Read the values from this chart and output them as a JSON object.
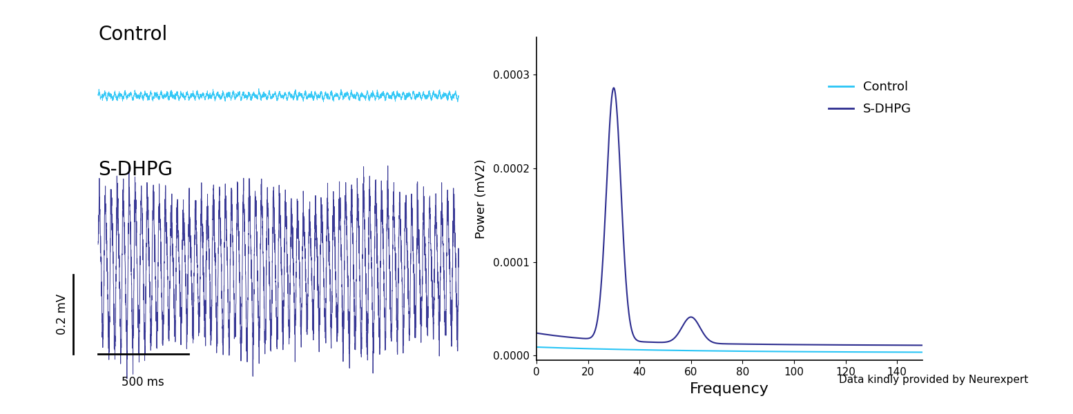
{
  "control_color": "#29C5F6",
  "sdhpg_color": "#2D2D8F",
  "title_control": "Control",
  "title_sdhpg": "S-DHPG",
  "scalebar_label_v": "0.2 mV",
  "scalebar_label_t": "500 ms",
  "ylabel_power": "Power (mV2)",
  "xlabel_freq": "Frequency",
  "yticks": [
    0.0,
    0.0001,
    0.0002,
    0.0003
  ],
  "ytick_labels": [
    "0.0000",
    "0.0001",
    "0.0002",
    "0.0003"
  ],
  "xticks": [
    0,
    20,
    40,
    60,
    80,
    100,
    120,
    140
  ],
  "xlim": [
    0,
    150
  ],
  "ylim": [
    -5e-06,
    0.00034
  ],
  "legend_labels": [
    "Control",
    "S-DHPG"
  ],
  "watermark": "Data kindly provided by Neurexpert",
  "background_color": "#ffffff"
}
